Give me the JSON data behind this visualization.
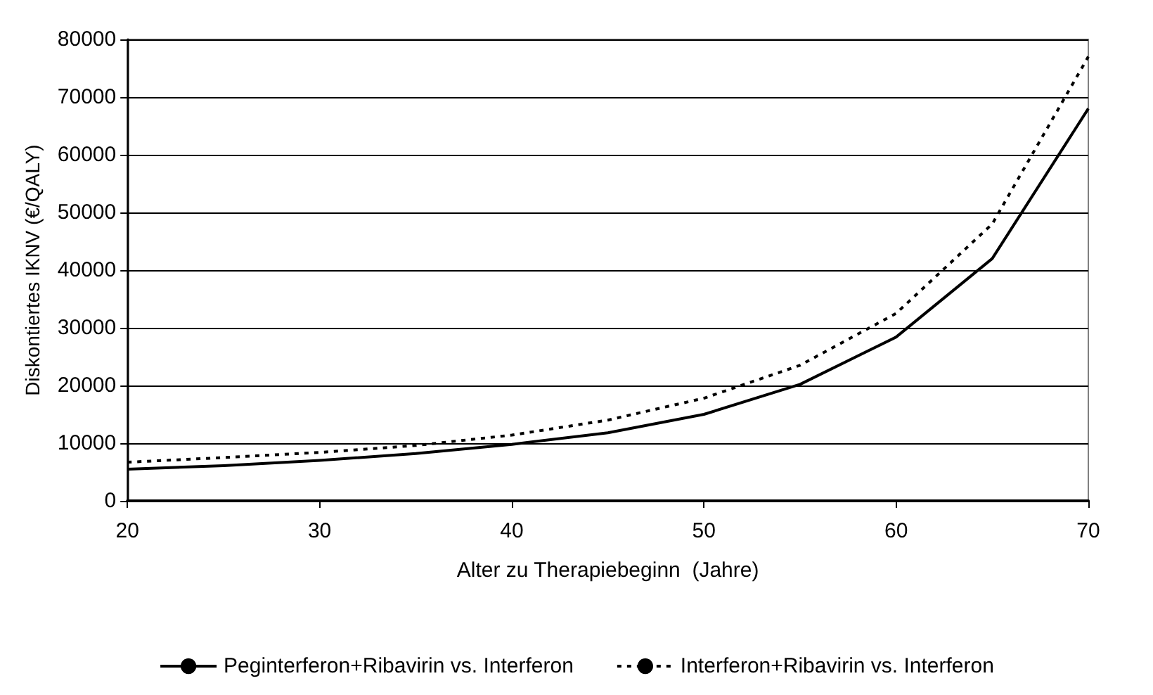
{
  "chart_data": {
    "type": "line",
    "xlabel": "Alter zu Therapiebeginn  (Jahre)",
    "ylabel": "Diskontiertes IKNV (€/QALY)",
    "x": [
      20,
      25,
      30,
      35,
      40,
      45,
      50,
      55,
      60,
      65,
      70
    ],
    "series": [
      {
        "name": "Peginterferon+Ribavirin vs. Interferon",
        "color": "#000000",
        "line_style": "solid",
        "values": [
          5500,
          6100,
          7000,
          8200,
          9800,
          11800,
          15000,
          20200,
          28400,
          42000,
          68000
        ]
      },
      {
        "name": "Interferon+Ribavirin vs. Interferon",
        "color": "#000000",
        "line_style": "dotted",
        "values": [
          6700,
          7500,
          8400,
          9600,
          11400,
          14000,
          17800,
          23500,
          32500,
          48000,
          77000
        ]
      }
    ],
    "xlim": [
      20,
      70
    ],
    "xticks": [
      20,
      30,
      40,
      50,
      60,
      70
    ],
    "ylim": [
      0,
      80000
    ],
    "yticks": [
      0,
      10000,
      20000,
      30000,
      40000,
      50000,
      60000,
      70000,
      80000
    ],
    "grid": "y",
    "legend": "bottom",
    "marker": "none"
  }
}
